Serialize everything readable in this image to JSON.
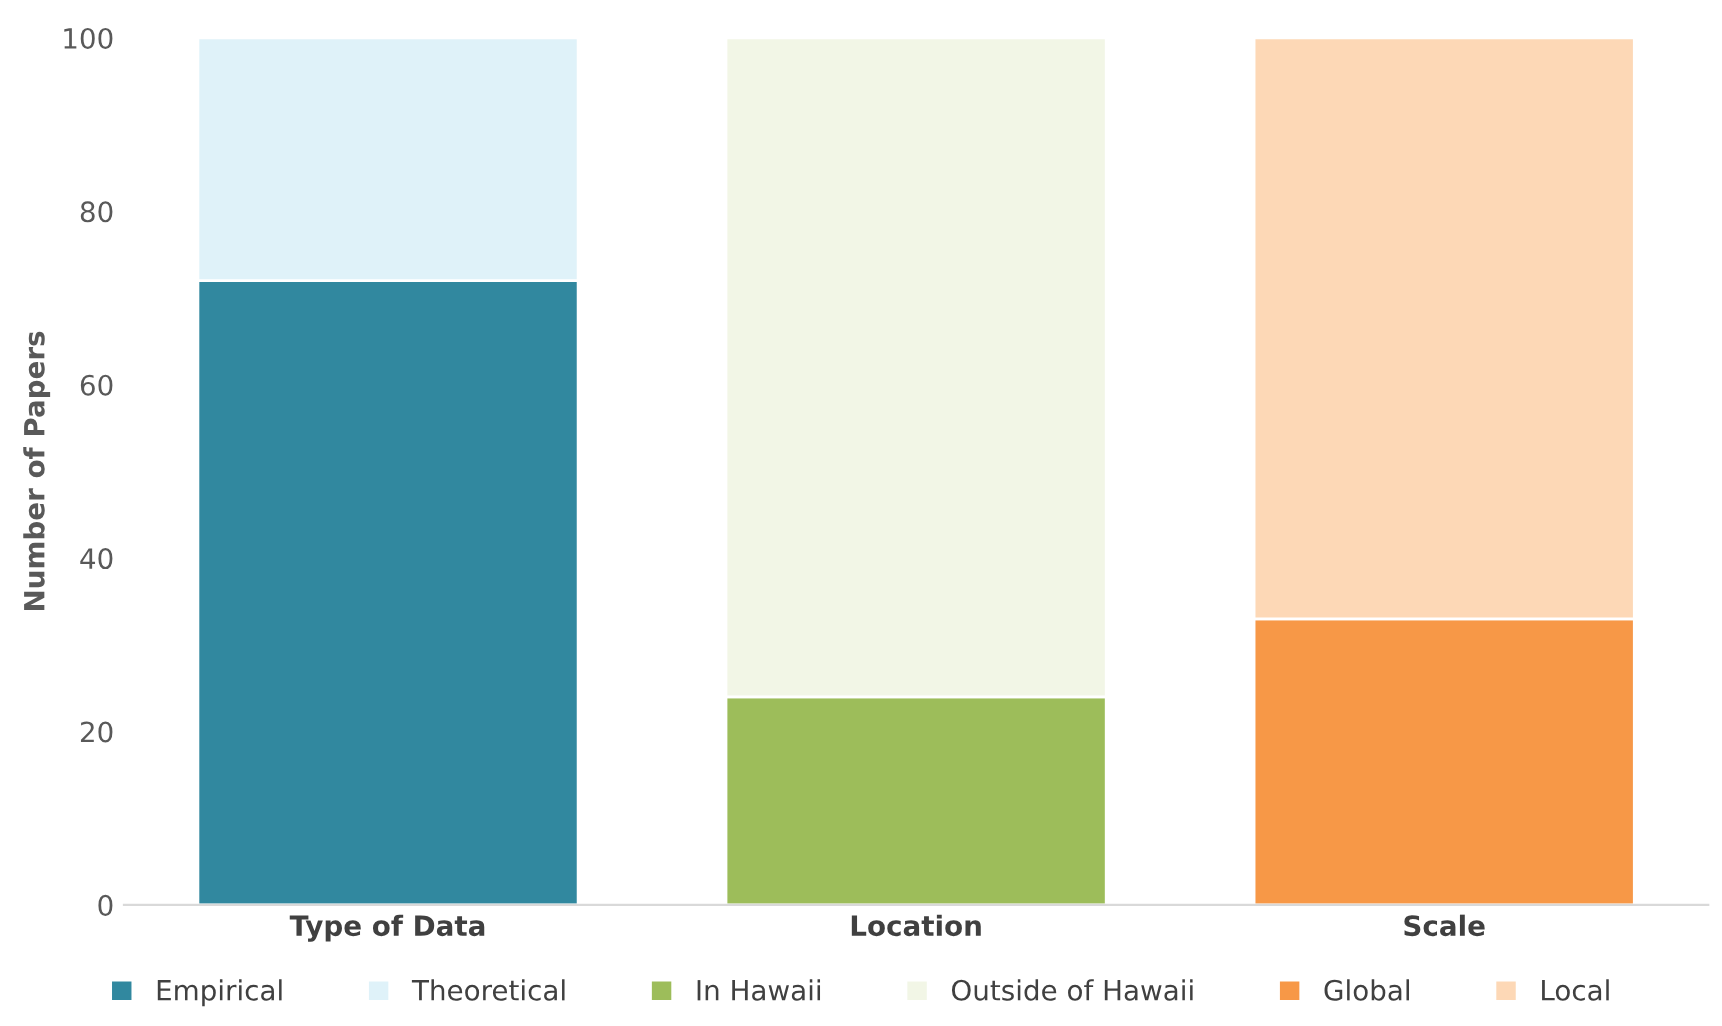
{
  "chart_data": {
    "type": "bar",
    "stacked": true,
    "ylabel": "Number of Papers",
    "categories": [
      "Type of Data",
      "Location",
      "Scale"
    ],
    "ylim": [
      0,
      100
    ],
    "yticks": [
      0,
      20,
      40,
      60,
      80,
      100
    ],
    "grid": false,
    "legend": "bottom",
    "series": [
      {
        "name": "Empirical",
        "color": "#31889f",
        "values": [
          72,
          null,
          null
        ]
      },
      {
        "name": "Theoretical",
        "color": "#dff2f9",
        "values": [
          28,
          null,
          null
        ]
      },
      {
        "name": "In Hawaii",
        "color": "#9dbd5a",
        "values": [
          null,
          24,
          null
        ]
      },
      {
        "name": "Outside of Hawaii",
        "color": "#f2f6e6",
        "values": [
          null,
          76,
          null
        ]
      },
      {
        "name": "Global",
        "color": "#f79847",
        "values": [
          null,
          null,
          33
        ]
      },
      {
        "name": "Local",
        "color": "#fdd8b6",
        "values": [
          null,
          null,
          67
        ]
      }
    ]
  }
}
